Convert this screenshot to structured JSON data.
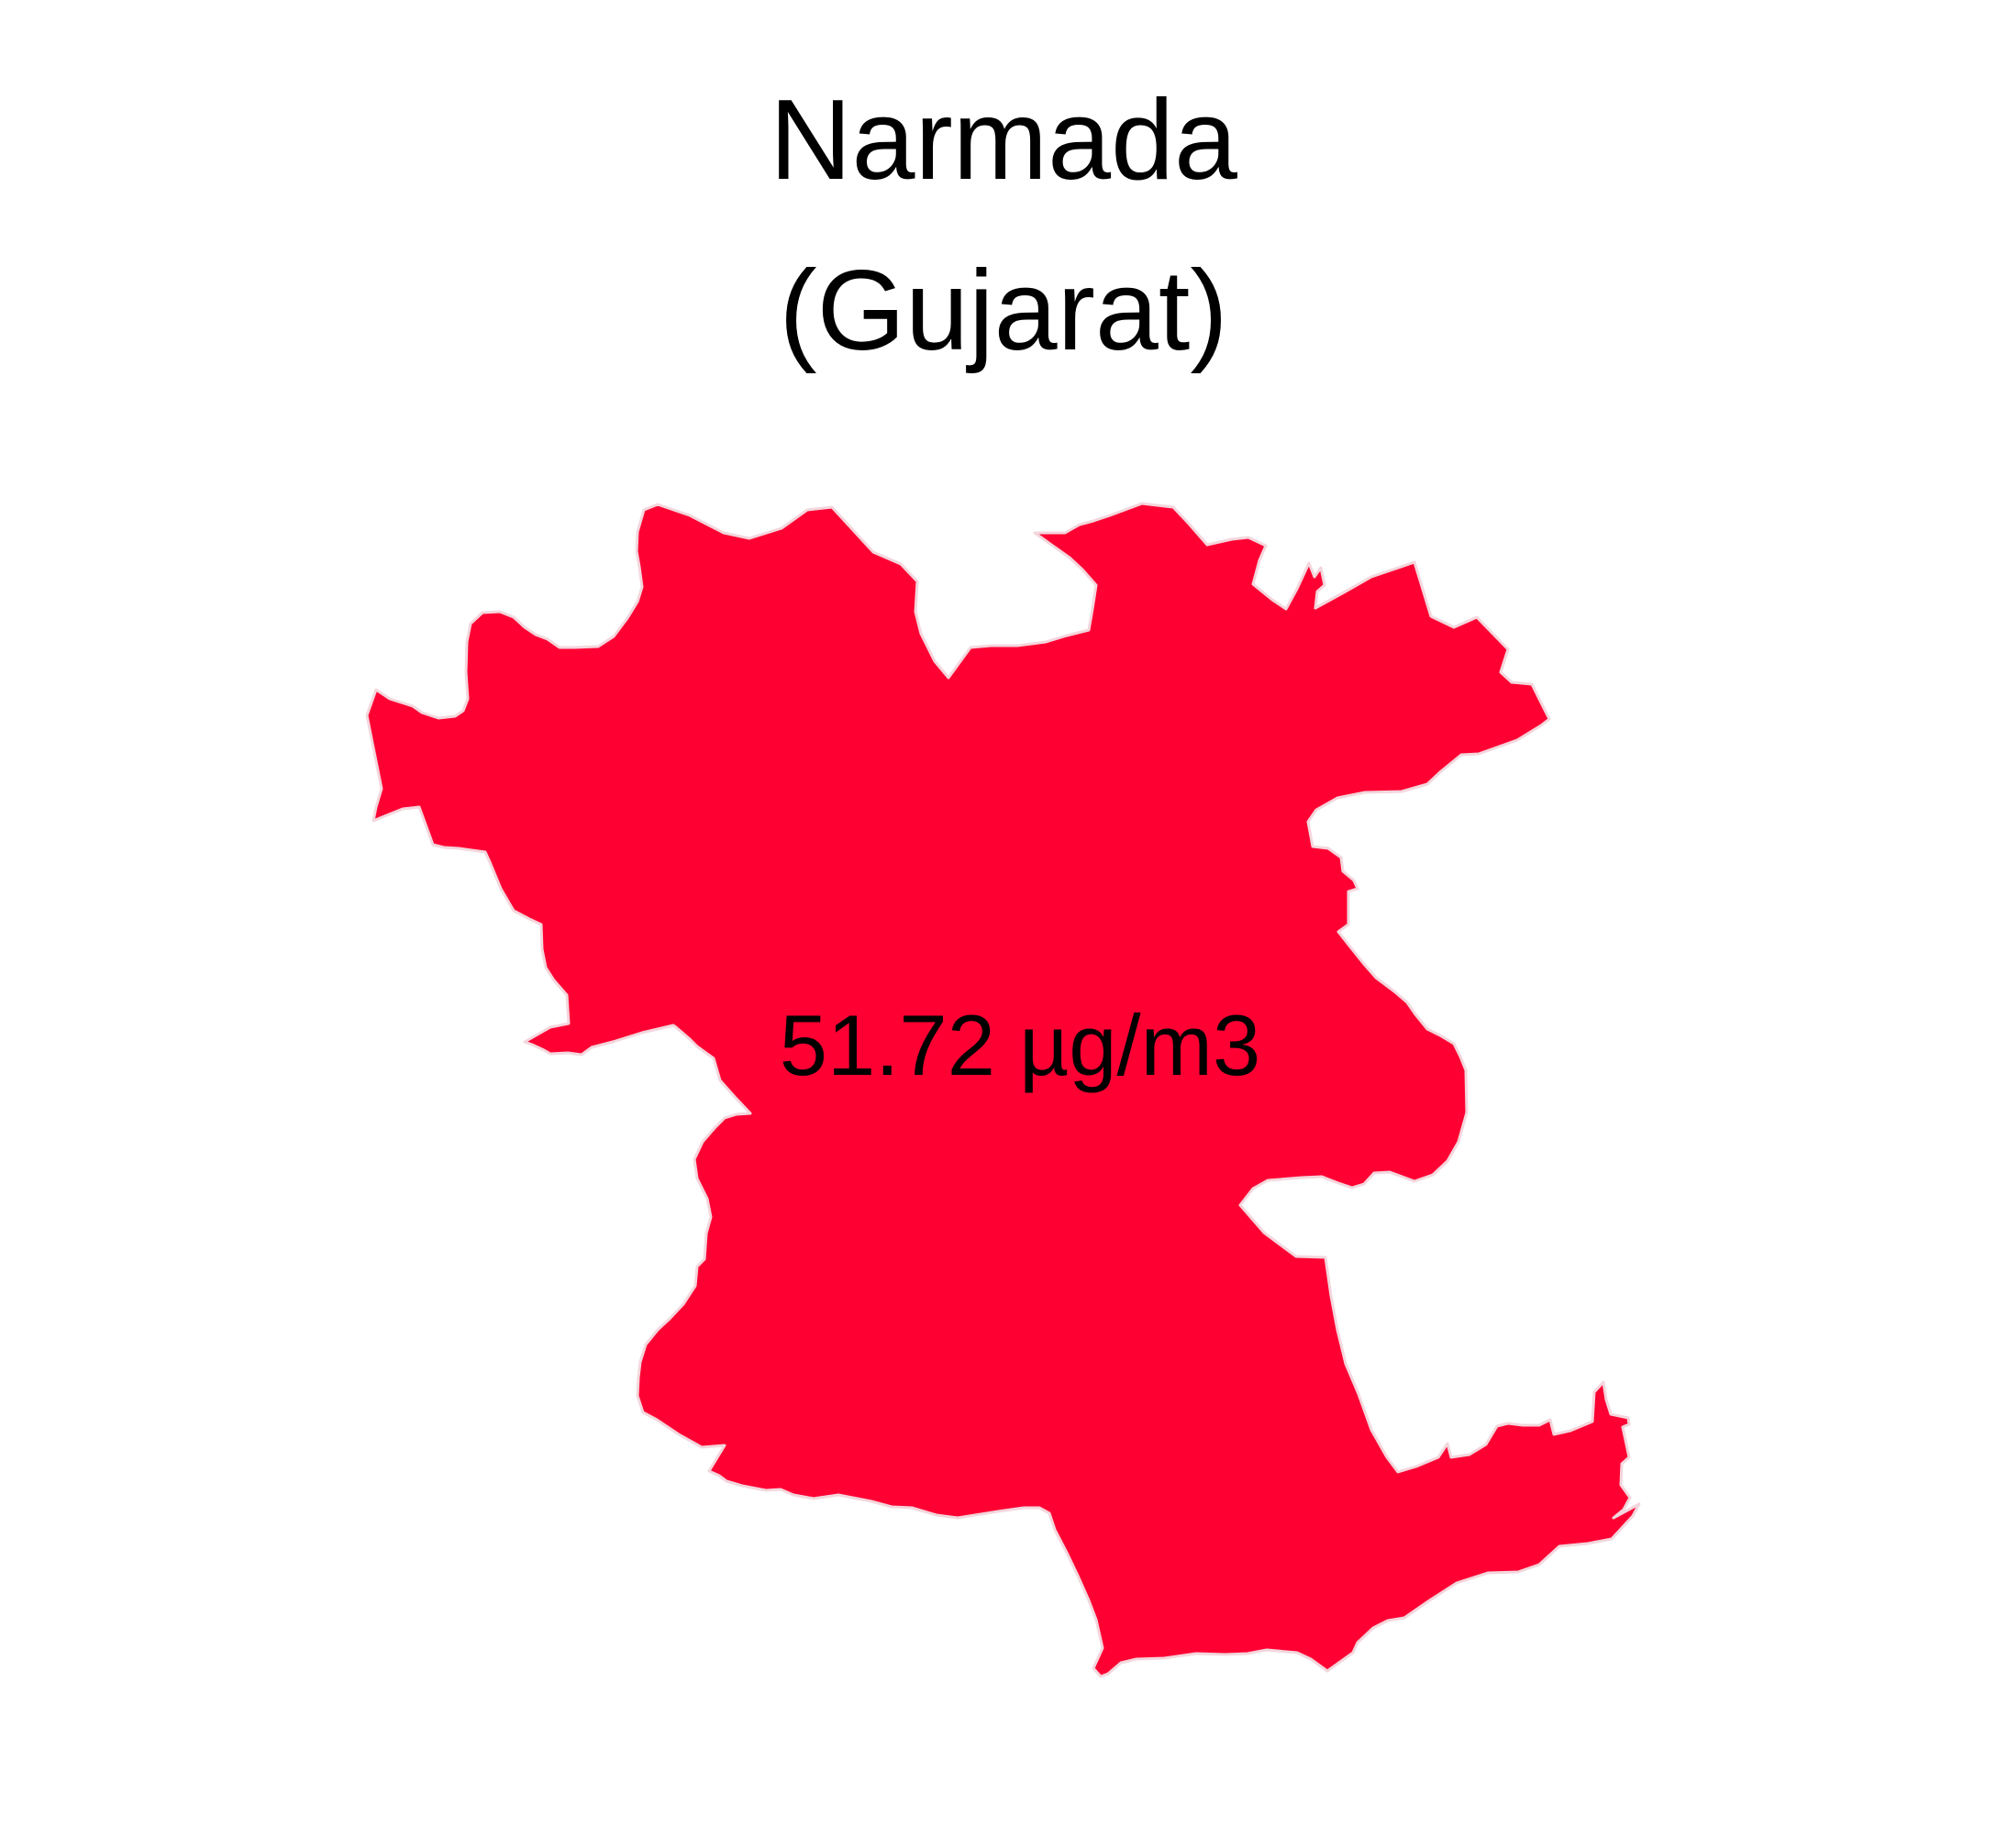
{
  "title": {
    "line1": "Narmada",
    "line2": "(Gujarat)"
  },
  "map": {
    "region_name": "Narmada",
    "state": "Gujarat",
    "fill_color": "#ff0033",
    "value_label": "51.72 µg/m3"
  }
}
